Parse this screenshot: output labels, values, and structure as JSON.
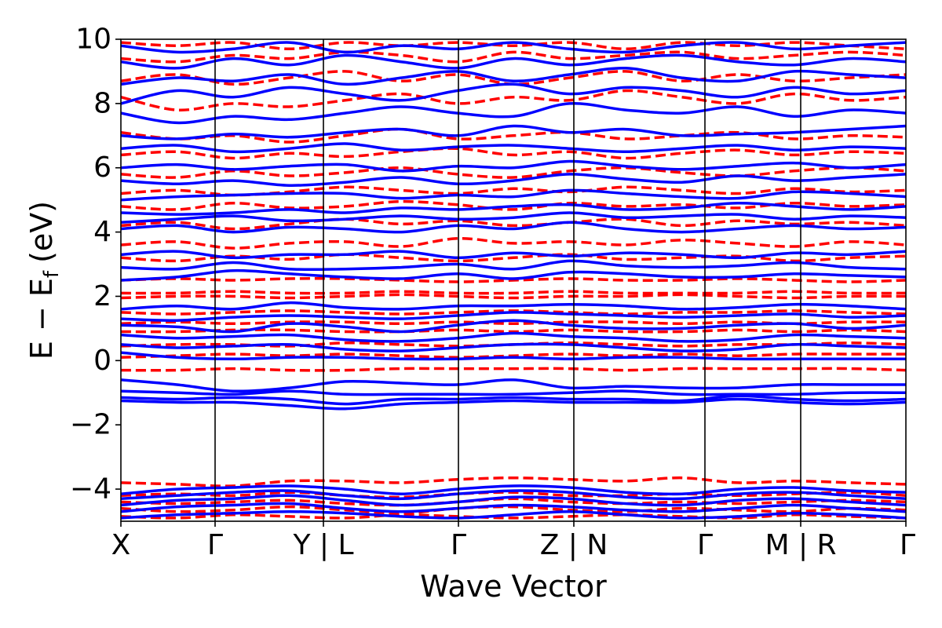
{
  "chart_data": {
    "type": "line",
    "xlabel": "Wave Vector",
    "ylabel": "E − E",
    "ylabel_sub": "f",
    "ylabel_unit": "(eV)",
    "ylim": [
      -5,
      10
    ],
    "yticks": [
      {
        "value": -4,
        "label": "−4"
      },
      {
        "value": -2,
        "label": "−2"
      },
      {
        "value": 0,
        "label": "0"
      },
      {
        "value": 2,
        "label": "2"
      },
      {
        "value": 4,
        "label": "4"
      },
      {
        "value": 6,
        "label": "6"
      },
      {
        "value": 8,
        "label": "8"
      },
      {
        "value": 10,
        "label": "10"
      }
    ],
    "xlim": [
      0,
      1
    ],
    "kpoints": [
      {
        "x": 0.0,
        "label": "X"
      },
      {
        "x": 0.12,
        "label": "Γ"
      },
      {
        "x": 0.258,
        "label": "Y | L"
      },
      {
        "x": 0.43,
        "label": "Γ"
      },
      {
        "x": 0.577,
        "label": "Z | N"
      },
      {
        "x": 0.744,
        "label": "Γ"
      },
      {
        "x": 0.866,
        "label": "M | R"
      },
      {
        "x": 1.0,
        "label": "Γ"
      }
    ],
    "series_styles": [
      {
        "key": "solid",
        "color": "#0000ff",
        "dash": "solid"
      },
      {
        "key": "dashed",
        "color": "#ff0000",
        "dash": "dashed"
      }
    ],
    "bands": {
      "solid": [
        [
          -4.9,
          -4.8,
          -4.75,
          -4.7,
          -4.75,
          -4.85,
          -4.9,
          -4.8,
          -4.7,
          -4.8,
          -4.9,
          -4.85,
          -4.75,
          -4.8,
          -4.9
        ],
        [
          -4.7,
          -4.55,
          -4.5,
          -4.45,
          -4.6,
          -4.7,
          -4.6,
          -4.5,
          -4.55,
          -4.65,
          -4.7,
          -4.6,
          -4.5,
          -4.6,
          -4.7
        ],
        [
          -4.5,
          -4.35,
          -4.3,
          -4.2,
          -4.35,
          -4.5,
          -4.4,
          -4.25,
          -4.3,
          -4.45,
          -4.5,
          -4.35,
          -4.3,
          -4.4,
          -4.5
        ],
        [
          -4.3,
          -4.2,
          -4.1,
          -4.05,
          -4.2,
          -4.3,
          -4.15,
          -4.05,
          -4.1,
          -4.25,
          -4.3,
          -4.15,
          -4.1,
          -4.2,
          -4.3
        ],
        [
          -4.15,
          -4.0,
          -3.95,
          -3.9,
          -4.0,
          -4.15,
          -4.0,
          -3.9,
          -3.95,
          -4.1,
          -4.15,
          -4.0,
          -3.95,
          -4.05,
          -4.1
        ],
        [
          -1.25,
          -1.3,
          -1.3,
          -1.4,
          -1.5,
          -1.35,
          -1.3,
          -1.25,
          -1.3,
          -1.3,
          -1.3,
          -1.2,
          -1.3,
          -1.35,
          -1.3
        ],
        [
          -1.15,
          -1.2,
          -1.15,
          -1.2,
          -1.35,
          -1.2,
          -1.2,
          -1.15,
          -1.2,
          -1.2,
          -1.25,
          -1.1,
          -1.2,
          -1.25,
          -1.2
        ],
        [
          -0.95,
          -1.0,
          -1.05,
          -0.95,
          -1.05,
          -1.05,
          -1.05,
          -1.05,
          -1.0,
          -0.95,
          -1.05,
          -1.05,
          -1.05,
          -1.0,
          -1.0
        ],
        [
          -0.6,
          -0.75,
          -0.95,
          -0.85,
          -0.65,
          -0.7,
          -0.75,
          -0.6,
          -0.85,
          -0.8,
          -0.85,
          -0.85,
          -0.75,
          -0.75,
          -0.75
        ],
        [
          0.25,
          0.1,
          0.05,
          0.1,
          0.1,
          0.05,
          0.05,
          0.1,
          0.05,
          0.1,
          0.1,
          0.05,
          0.05,
          0.05,
          0.05
        ],
        [
          0.5,
          0.4,
          0.45,
          0.5,
          0.35,
          0.3,
          0.4,
          0.5,
          0.5,
          0.4,
          0.3,
          0.35,
          0.5,
          0.45,
          0.4
        ],
        [
          0.8,
          0.7,
          0.75,
          0.8,
          0.65,
          0.6,
          0.7,
          0.85,
          0.75,
          0.7,
          0.6,
          0.65,
          0.8,
          0.75,
          0.7
        ],
        [
          1.1,
          1.05,
          0.9,
          1.15,
          1.05,
          0.9,
          1.1,
          1.25,
          1.1,
          1.0,
          1.0,
          1.1,
          1.15,
          1.0,
          1.1
        ],
        [
          1.3,
          1.25,
          1.35,
          1.4,
          1.35,
          1.3,
          1.4,
          1.5,
          1.45,
          1.4,
          1.35,
          1.4,
          1.45,
          1.35,
          1.4
        ],
        [
          1.6,
          1.7,
          1.6,
          1.8,
          1.65,
          1.6,
          1.7,
          1.7,
          1.75,
          1.7,
          1.6,
          1.65,
          1.75,
          1.7,
          1.6
        ],
        [
          2.5,
          2.6,
          2.8,
          2.7,
          2.6,
          2.55,
          2.7,
          2.55,
          2.75,
          2.7,
          2.6,
          2.6,
          2.7,
          2.65,
          2.6
        ],
        [
          2.9,
          2.85,
          3.05,
          2.85,
          2.85,
          2.9,
          3.0,
          2.85,
          3.1,
          2.95,
          2.9,
          2.95,
          3.05,
          2.9,
          2.85
        ],
        [
          3.3,
          3.4,
          3.2,
          3.3,
          3.3,
          3.4,
          3.2,
          3.35,
          3.25,
          3.35,
          3.3,
          3.2,
          3.35,
          3.3,
          3.4
        ],
        [
          4.1,
          4.2,
          4.0,
          4.15,
          4.1,
          4.0,
          4.2,
          4.1,
          4.3,
          4.1,
          4.0,
          4.1,
          4.2,
          4.1,
          4.15
        ],
        [
          4.3,
          4.4,
          4.5,
          4.35,
          4.4,
          4.5,
          4.4,
          4.45,
          4.6,
          4.45,
          4.5,
          4.55,
          4.4,
          4.5,
          4.45
        ],
        [
          4.6,
          4.55,
          4.6,
          4.7,
          4.6,
          4.75,
          4.7,
          4.8,
          4.85,
          4.7,
          4.75,
          4.9,
          4.8,
          4.7,
          4.8
        ],
        [
          5.0,
          5.1,
          5.15,
          5.2,
          5.2,
          5.05,
          5.15,
          5.1,
          5.3,
          5.2,
          5.1,
          5.05,
          5.25,
          5.2,
          5.1
        ],
        [
          5.6,
          5.5,
          5.6,
          5.45,
          5.55,
          5.7,
          5.5,
          5.6,
          5.8,
          5.65,
          5.55,
          5.75,
          5.6,
          5.7,
          5.8
        ],
        [
          6.0,
          6.1,
          5.95,
          6.05,
          6.1,
          5.9,
          6.05,
          6.0,
          6.2,
          6.05,
          5.95,
          6.05,
          6.15,
          6.0,
          6.1
        ],
        [
          6.6,
          6.7,
          6.5,
          6.6,
          6.75,
          6.55,
          6.65,
          6.7,
          6.6,
          6.5,
          6.6,
          6.7,
          6.55,
          6.65,
          6.6
        ],
        [
          7.0,
          6.9,
          7.05,
          6.95,
          7.1,
          7.2,
          7.0,
          7.3,
          7.1,
          7.2,
          7.0,
          7.05,
          7.1,
          7.2,
          7.3
        ],
        [
          7.7,
          7.4,
          7.6,
          7.5,
          7.7,
          7.9,
          7.7,
          7.6,
          8.0,
          7.8,
          7.7,
          7.9,
          7.6,
          7.8,
          7.7
        ],
        [
          8.0,
          8.4,
          8.2,
          8.5,
          8.3,
          8.1,
          8.4,
          8.6,
          8.3,
          8.5,
          8.4,
          8.2,
          8.5,
          8.3,
          8.4
        ],
        [
          8.6,
          8.8,
          8.7,
          8.9,
          8.6,
          8.8,
          9.0,
          8.7,
          8.9,
          9.1,
          8.8,
          8.7,
          9.0,
          8.9,
          8.8
        ],
        [
          9.3,
          9.1,
          9.4,
          9.2,
          9.5,
          9.3,
          9.1,
          9.4,
          9.2,
          9.4,
          9.5,
          9.3,
          9.2,
          9.4,
          9.3
        ],
        [
          9.8,
          9.6,
          9.7,
          9.9,
          9.6,
          9.8,
          9.7,
          9.9,
          9.7,
          9.6,
          9.8,
          9.9,
          9.7,
          9.8,
          9.9
        ]
      ],
      "dashed": [
        [
          -4.85,
          -4.9,
          -4.8,
          -4.85,
          -4.9,
          -4.8,
          -4.85,
          -4.9,
          -4.85,
          -4.8,
          -4.85,
          -4.9,
          -4.8,
          -4.85,
          -4.9
        ],
        [
          -4.6,
          -4.7,
          -4.65,
          -4.55,
          -4.65,
          -4.75,
          -4.6,
          -4.55,
          -4.65,
          -4.7,
          -4.6,
          -4.65,
          -4.7,
          -4.6,
          -4.65
        ],
        [
          -4.4,
          -4.45,
          -4.4,
          -4.35,
          -4.45,
          -4.5,
          -4.4,
          -4.3,
          -4.4,
          -4.45,
          -4.4,
          -4.45,
          -4.4,
          -4.35,
          -4.4
        ],
        [
          -4.2,
          -4.15,
          -4.2,
          -4.1,
          -4.2,
          -4.25,
          -4.15,
          -4.1,
          -4.2,
          -4.2,
          -4.15,
          -4.2,
          -4.15,
          -4.1,
          -4.2
        ],
        [
          -3.8,
          -3.85,
          -3.9,
          -3.75,
          -3.75,
          -3.8,
          -3.7,
          -3.65,
          -3.7,
          -3.75,
          -3.65,
          -3.8,
          -3.75,
          -3.8,
          -3.85
        ],
        [
          -0.3,
          -0.3,
          -0.25,
          -0.3,
          -0.3,
          -0.25,
          -0.25,
          -0.25,
          -0.25,
          -0.3,
          -0.25,
          -0.25,
          -0.25,
          -0.25,
          -0.3
        ],
        [
          0.1,
          0.15,
          0.2,
          0.15,
          0.2,
          0.15,
          0.1,
          0.15,
          0.2,
          0.15,
          0.2,
          0.15,
          0.2,
          0.2,
          0.2
        ],
        [
          0.45,
          0.5,
          0.5,
          0.45,
          0.55,
          0.5,
          0.45,
          0.5,
          0.55,
          0.5,
          0.45,
          0.5,
          0.5,
          0.55,
          0.5
        ],
        [
          0.9,
          0.9,
          0.95,
          0.95,
          0.9,
          0.9,
          0.95,
          0.9,
          0.95,
          0.9,
          0.9,
          0.95,
          0.9,
          0.95,
          0.9
        ],
        [
          1.15,
          1.2,
          1.15,
          1.2,
          1.2,
          1.15,
          1.2,
          1.15,
          1.2,
          1.2,
          1.15,
          1.2,
          1.15,
          1.2,
          1.2
        ],
        [
          1.5,
          1.45,
          1.5,
          1.55,
          1.5,
          1.45,
          1.5,
          1.55,
          1.5,
          1.45,
          1.5,
          1.5,
          1.55,
          1.5,
          1.45
        ],
        [
          1.95,
          2.0,
          2.0,
          1.95,
          2.0,
          2.05,
          2.0,
          1.95,
          2.0,
          2.0,
          2.05,
          2.0,
          1.95,
          2.0,
          2.0
        ],
        [
          2.1,
          2.1,
          2.15,
          2.1,
          2.1,
          2.15,
          2.1,
          2.1,
          2.15,
          2.1,
          2.1,
          2.1,
          2.15,
          2.1,
          2.1
        ],
        [
          2.5,
          2.55,
          2.5,
          2.55,
          2.55,
          2.5,
          2.45,
          2.5,
          2.55,
          2.5,
          2.5,
          2.55,
          2.5,
          2.45,
          2.5
        ],
        [
          3.2,
          3.1,
          3.25,
          3.15,
          3.3,
          3.2,
          3.1,
          3.2,
          3.3,
          3.15,
          3.2,
          3.25,
          3.1,
          3.2,
          3.25
        ],
        [
          3.6,
          3.7,
          3.5,
          3.65,
          3.7,
          3.55,
          3.8,
          3.65,
          3.7,
          3.6,
          3.75,
          3.65,
          3.55,
          3.7,
          3.6
        ],
        [
          4.2,
          4.3,
          4.1,
          4.25,
          4.4,
          4.25,
          4.35,
          4.2,
          4.3,
          4.4,
          4.2,
          4.35,
          4.25,
          4.3,
          4.2
        ],
        [
          4.8,
          4.7,
          4.9,
          4.75,
          4.8,
          4.95,
          4.85,
          4.7,
          4.9,
          4.8,
          4.85,
          4.75,
          4.9,
          4.8,
          4.85
        ],
        [
          5.2,
          5.3,
          5.15,
          5.25,
          5.4,
          5.3,
          5.2,
          5.35,
          5.25,
          5.4,
          5.3,
          5.2,
          5.35,
          5.25,
          5.3
        ],
        [
          5.8,
          5.7,
          5.9,
          5.75,
          5.85,
          6.0,
          5.8,
          5.7,
          5.9,
          6.0,
          5.85,
          5.75,
          5.9,
          6.0,
          5.9
        ],
        [
          6.4,
          6.5,
          6.3,
          6.45,
          6.35,
          6.5,
          6.6,
          6.4,
          6.5,
          6.3,
          6.45,
          6.55,
          6.4,
          6.5,
          6.45
        ],
        [
          7.1,
          6.9,
          7.0,
          6.8,
          7.0,
          7.2,
          6.9,
          7.0,
          7.1,
          6.9,
          7.0,
          7.1,
          6.9,
          7.0,
          6.95
        ],
        [
          8.2,
          7.8,
          8.0,
          7.9,
          8.1,
          8.3,
          8.0,
          8.2,
          8.1,
          8.4,
          8.2,
          8.0,
          8.3,
          8.1,
          8.2
        ],
        [
          8.7,
          8.9,
          8.6,
          8.8,
          9.0,
          8.7,
          8.9,
          8.6,
          8.8,
          9.0,
          8.7,
          8.9,
          8.7,
          8.8,
          8.9
        ],
        [
          9.4,
          9.3,
          9.5,
          9.4,
          9.6,
          9.5,
          9.3,
          9.6,
          9.4,
          9.5,
          9.6,
          9.4,
          9.5,
          9.6,
          9.5
        ],
        [
          9.9,
          9.8,
          9.9,
          9.7,
          9.9,
          9.8,
          9.9,
          9.8,
          9.9,
          9.7,
          9.9,
          9.8,
          9.9,
          9.8,
          9.7
        ]
      ]
    }
  }
}
